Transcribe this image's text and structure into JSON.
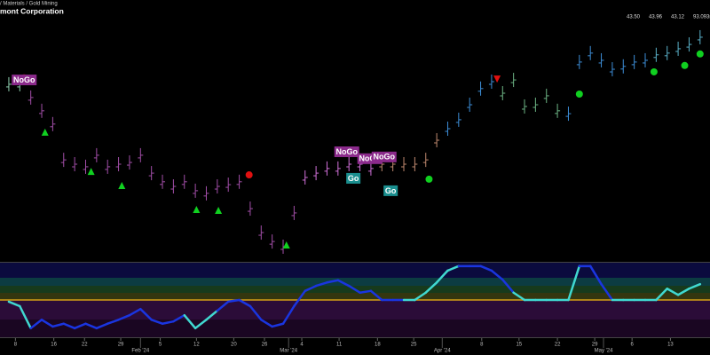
{
  "header": {
    "sector": "/ Materials / Gold Mining",
    "company": "mont Corporation",
    "quotes": [
      "43.50",
      "43.96",
      "43.12",
      "93.093m"
    ]
  },
  "chart_data": {
    "type": "ohlc",
    "close": [
      42.0,
      42.0,
      41.54,
      41.08,
      40.62,
      39.38,
      39.23,
      39.14,
      39.54,
      39.14,
      39.23,
      39.29,
      39.54,
      38.92,
      38.62,
      38.46,
      38.62,
      38.31,
      38.22,
      38.46,
      38.52,
      38.62,
      37.69,
      36.86,
      36.55,
      36.37,
      37.54,
      38.77,
      38.92,
      39.08,
      39.08,
      39.23,
      39.23,
      39.08,
      39.23,
      39.23,
      39.23,
      39.23,
      39.38,
      40.06,
      40.46,
      40.77,
      41.29,
      41.85,
      42.09,
      41.69,
      42.15,
      41.23,
      41.29,
      41.6,
      41.08,
      40.98,
      42.77,
      43.08,
      42.83,
      42.52,
      42.62,
      42.77,
      42.83,
      43.02,
      43.08,
      43.23,
      43.38,
      43.63
    ],
    "bar_colors": [
      "#8fd0b0",
      "#8fd0b0",
      "#a24ea8",
      "#a24ea8",
      "#a24ea8",
      "#a24ea8",
      "#a24ea8",
      "#a24ea8",
      "#a24ea8",
      "#a24ea8",
      "#a24ea8",
      "#a24ea8",
      "#a24ea8",
      "#a24ea8",
      "#a24ea8",
      "#a24ea8",
      "#a24ea8",
      "#a24ea8",
      "#a24ea8",
      "#a24ea8",
      "#a24ea8",
      "#a24ea8",
      "#a24ea8",
      "#a24ea8",
      "#a24ea8",
      "#a24ea8",
      "#a24ea8",
      "#d070d8",
      "#d070d8",
      "#d070d8",
      "#d070d8",
      "#d070d8",
      "#d070d8",
      "#d070d8",
      "#c08a70",
      "#c08a70",
      "#c08a70",
      "#c08a70",
      "#c08a70",
      "#c08a70",
      "#3d8ed8",
      "#3d8ed8",
      "#3d8ed8",
      "#3d8ed8",
      "#3d8ed8",
      "#6db585",
      "#6db585",
      "#6db585",
      "#6db585",
      "#6db585",
      "#6db585",
      "#3d8ed8",
      "#3d8ed8",
      "#3d8ed8",
      "#3d8ed8",
      "#3d8ed8",
      "#3d8ed8",
      "#3d8ed8",
      "#3d8ed8",
      "#5ab0c8",
      "#5ab0c8",
      "#5ab0c8",
      "#5ab0c8",
      "#5ab0c8"
    ],
    "xlim": [
      -0.4,
      63.5
    ],
    "ylim": [
      36,
      44.92
    ],
    "xticks": [
      {
        "value": 0.6,
        "label": "8"
      },
      {
        "value": 4.1,
        "label": "16"
      },
      {
        "value": 6.9,
        "label": "22"
      },
      {
        "value": 10.2,
        "label": "29"
      },
      {
        "value": 13.8,
        "label": "5"
      },
      {
        "value": 17.1,
        "label": "12"
      },
      {
        "value": 20.5,
        "label": "20"
      },
      {
        "value": 23.3,
        "label": "26"
      },
      {
        "value": 26.7,
        "label": "4"
      },
      {
        "value": 30.1,
        "label": "11"
      },
      {
        "value": 33.6,
        "label": "18"
      },
      {
        "value": 36.9,
        "label": "25"
      },
      {
        "value": 43.1,
        "label": "8"
      },
      {
        "value": 46.5,
        "label": "15"
      },
      {
        "value": 50,
        "label": "22"
      },
      {
        "value": 53.4,
        "label": "29"
      },
      {
        "value": 56.8,
        "label": "6"
      },
      {
        "value": 60.3,
        "label": "13"
      }
    ],
    "month_ticks": [
      {
        "value": 12,
        "label": "Feb '24"
      },
      {
        "value": 25.5,
        "label": "Mar '24"
      },
      {
        "value": 39.5,
        "label": "Apr '24"
      },
      {
        "value": 54.2,
        "label": "May '24"
      }
    ],
    "signals": [
      {
        "x": 1.4,
        "value": 42.22,
        "shape": "circle",
        "color": "#e01010"
      },
      {
        "x": 3.3,
        "value": 40.34,
        "shape": "triangle-up",
        "color": "#10d020"
      },
      {
        "x": 7.5,
        "value": 38.98,
        "shape": "triangle-up",
        "color": "#10d020"
      },
      {
        "x": 10.3,
        "value": 38.49,
        "shape": "triangle-up",
        "color": "#10d020"
      },
      {
        "x": 17.1,
        "value": 37.66,
        "shape": "triangle-up",
        "color": "#10d020"
      },
      {
        "x": 19.1,
        "value": 37.63,
        "shape": "triangle-up",
        "color": "#10d020"
      },
      {
        "x": 25.3,
        "value": 36.43,
        "shape": "triangle-up",
        "color": "#10d020"
      },
      {
        "x": 21.9,
        "value": 38.86,
        "shape": "circle",
        "color": "#e01010"
      },
      {
        "x": 38.3,
        "value": 38.71,
        "shape": "circle",
        "color": "#10d020"
      },
      {
        "x": 44.5,
        "value": 42.18,
        "shape": "triangle-down",
        "color": "#e01010"
      },
      {
        "x": 52.0,
        "value": 41.66,
        "shape": "circle",
        "color": "#10d020"
      },
      {
        "x": 58.8,
        "value": 42.43,
        "shape": "circle",
        "color": "#10d020"
      },
      {
        "x": 61.6,
        "value": 42.65,
        "shape": "circle",
        "color": "#10d020"
      },
      {
        "x": 63.0,
        "value": 43.05,
        "shape": "circle",
        "color": "#10d020"
      }
    ],
    "labels": [
      {
        "x": 1.4,
        "value": 42.15,
        "label": "NoGo",
        "color": "#8b2a8b"
      },
      {
        "x": 30.8,
        "value": 39.66,
        "label": "NoGo",
        "color": "#8b2a8b"
      },
      {
        "x": 32.9,
        "value": 39.42,
        "label": "NoGo",
        "color": "#8b2a8b"
      },
      {
        "x": 34.2,
        "value": 39.48,
        "label": "NoGo",
        "color": "#8b2a8b"
      },
      {
        "x": 31.4,
        "value": 38.74,
        "label": "Go",
        "color": "#1a8f8f"
      },
      {
        "x": 34.8,
        "value": 38.31,
        "label": "Go",
        "color": "#1a8f8f"
      }
    ],
    "oscillator": [
      -0.3,
      -1.1,
      -5.0,
      -3.5,
      -4.7,
      -4.2,
      -5.0,
      -4.2,
      -5.0,
      -4.2,
      -3.5,
      -2.7,
      -1.6,
      -3.5,
      -4.2,
      -3.8,
      -2.7,
      -5.0,
      -3.5,
      -1.9,
      -0.3,
      0,
      -1.1,
      -3.5,
      -4.7,
      -4.2,
      -1.1,
      1.6,
      2.5,
      3.1,
      3.5,
      2.5,
      1.3,
      1.6,
      0,
      0,
      0,
      0,
      1.3,
      3.1,
      5.2,
      6.0,
      6.0,
      6.0,
      5.2,
      3.6,
      1.3,
      0,
      0,
      0,
      0,
      0,
      6.0,
      6.0,
      2.8,
      0,
      0,
      0,
      0,
      0,
      2.0,
      0.9,
      2.0,
      2.8
    ],
    "osc_colors": [
      "#40d8d0",
      "#40d8d0",
      "#1a35e0",
      "#1a35e0",
      "#1a35e0",
      "#1a35e0",
      "#1a35e0",
      "#1a35e0",
      "#1a35e0",
      "#1a35e0",
      "#1a35e0",
      "#1a35e0",
      "#1a35e0",
      "#1a35e0",
      "#1a35e0",
      "#1a35e0",
      "#40d8d0",
      "#40d8d0",
      "#40d8d0",
      "#1a35e0",
      "#1a35e0",
      "#1a35e0",
      "#1a35e0",
      "#1a35e0",
      "#1a35e0",
      "#1a35e0",
      "#1a35e0",
      "#1a35e0",
      "#1a35e0",
      "#1a35e0",
      "#1a35e0",
      "#1a35e0",
      "#1a35e0",
      "#1a35e0",
      "#1a35e0",
      "#1a35e0",
      "#40d8d0",
      "#40d8d0",
      "#40d8d0",
      "#40d8d0",
      "#40d8d0",
      "#1a35e0",
      "#1a35e0",
      "#1a35e0",
      "#1a35e0",
      "#1a35e0",
      "#40d8d0",
      "#40d8d0",
      "#40d8d0",
      "#40d8d0",
      "#40d8d0",
      "#40d8d0",
      "#1a35e0",
      "#1a35e0",
      "#1a35e0",
      "#40d8d0",
      "#40d8d0",
      "#40d8d0",
      "#40d8d0",
      "#40d8d0",
      "#40d8d0",
      "#40d8d0",
      "#40d8d0",
      "#40d8d0"
    ],
    "osc_ylim": [
      -6.6,
      6.6
    ]
  }
}
